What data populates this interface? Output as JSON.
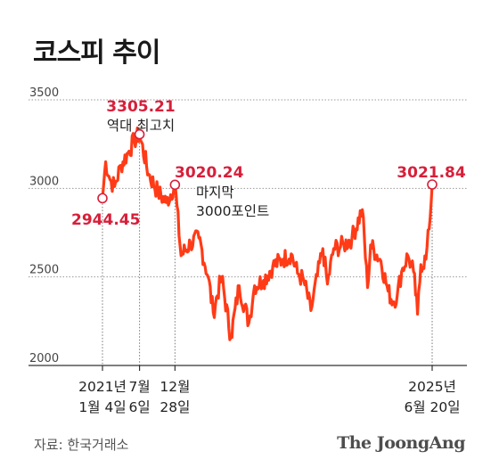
{
  "title": "코스피 추이",
  "source": "자료: 한국거래소",
  "brand": "The JoongAng",
  "colors": {
    "line": "#ff3b17",
    "highlight": "#d81f3a",
    "grid": "#9a9a9a"
  },
  "chart_data": {
    "type": "line",
    "title": "코스피 추이",
    "ylim": [
      2000,
      3500
    ],
    "yticks": [
      "3500",
      "3000",
      "2500",
      "2000"
    ],
    "x_labels": [
      {
        "date": "2021-01-04",
        "line1": "2021년",
        "line2": "1월 4일"
      },
      {
        "date": "2021-07-06",
        "line1": "7월",
        "line2": "6일"
      },
      {
        "date": "2021-12-28",
        "line1": "12월",
        "line2": "28일"
      },
      {
        "date": "2025-06-20",
        "line1": "2025년",
        "line2": "6월 20일"
      }
    ],
    "annotations": [
      {
        "date": "2021-01-04",
        "value": 2944.45,
        "label": "2944.45",
        "note": []
      },
      {
        "date": "2021-07-06",
        "value": 3305.21,
        "label": "3305.21",
        "note": [
          "역대 최고치"
        ]
      },
      {
        "date": "2021-12-28",
        "value": 3020.24,
        "label": "3020.24",
        "note": [
          "마지막",
          "3000포인트"
        ]
      },
      {
        "date": "2025-06-20",
        "value": 3021.84,
        "label": "3021.84",
        "note": []
      }
    ],
    "series": [
      {
        "x": [
          "2021-01-04",
          "2021-01-20",
          "2021-02-10",
          "2021-03-05",
          "2021-04-05",
          "2021-05-10",
          "2021-06-10",
          "2021-07-06",
          "2021-08-20",
          "2021-10-05",
          "2021-11-15",
          "2021-12-28",
          "2022-01-27",
          "2022-03-15",
          "2022-04-25",
          "2022-06-10",
          "2022-07-05",
          "2022-08-15",
          "2022-09-30",
          "2022-11-10",
          "2022-12-28",
          "2023-01-25",
          "2023-03-10",
          "2023-04-25",
          "2023-06-15",
          "2023-07-25",
          "2023-08-25",
          "2023-09-25",
          "2023-10-30",
          "2023-12-28",
          "2024-01-20",
          "2024-02-20",
          "2024-04-10",
          "2024-05-20",
          "2024-07-10",
          "2024-08-05",
          "2024-08-20",
          "2024-10-10",
          "2024-11-14",
          "2024-12-09",
          "2024-12-30",
          "2025-01-20",
          "2025-02-20",
          "2025-03-20",
          "2025-04-09",
          "2025-04-25",
          "2025-05-20",
          "2025-06-05",
          "2025-06-20"
        ],
        "values": [
          2944.45,
          3150,
          3050,
          3010,
          3130,
          3200,
          3270,
          3305.21,
          3080,
          2980,
          2920,
          3020.24,
          2620,
          2690,
          2720,
          2500,
          2300,
          2500,
          2160,
          2450,
          2240,
          2450,
          2480,
          2560,
          2600,
          2630,
          2520,
          2480,
          2310,
          2660,
          2460,
          2660,
          2680,
          2720,
          2880,
          2440,
          2680,
          2590,
          2420,
          2360,
          2400,
          2530,
          2620,
          2530,
          2290,
          2570,
          2600,
          2770,
          3021.84
        ]
      }
    ]
  }
}
